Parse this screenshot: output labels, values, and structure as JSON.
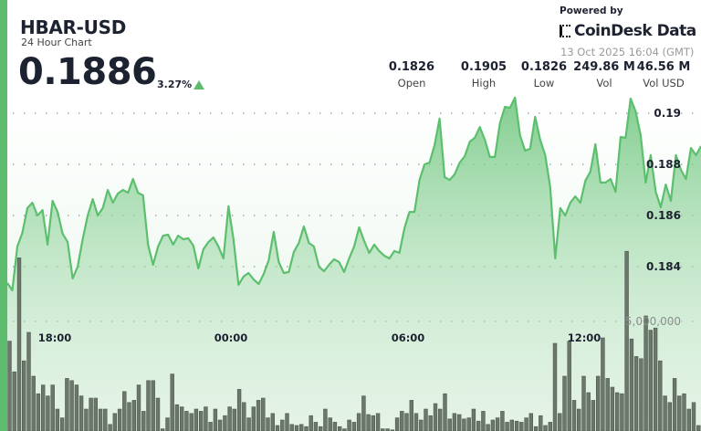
{
  "header": {
    "symbol": "HBAR-USD",
    "subtitle": "24 Hour Chart",
    "price": "0.1886",
    "change": "3.27%",
    "change_direction": "up",
    "powered_by": "Powered by",
    "brand": "CoinDesk Data",
    "timestamp": "13 Oct 2025 16:04 (GMT)"
  },
  "stats": [
    {
      "value": "0.1826",
      "label": "Open"
    },
    {
      "value": "0.1905",
      "label": "High"
    },
    {
      "value": "0.1826",
      "label": "Low"
    },
    {
      "value": "249.86 M",
      "label": "Vol"
    },
    {
      "value": "46.56 M",
      "label": "Vol USD"
    }
  ],
  "colors": {
    "accent": "#5dbb6e",
    "line": "#5cbf6e",
    "volume": "#6b776b"
  },
  "chart_data": {
    "type": "area",
    "title": "",
    "x_ticks": [
      "18:00",
      "00:00",
      "06:00",
      "12:00"
    ],
    "y_ticks": [
      "0.19",
      "0.188",
      "0.186",
      "0.184"
    ],
    "volume_tick": "5,000,000",
    "ylim": [
      0.1805,
      0.1944
    ],
    "grid": true,
    "price": [
      0.18336,
      0.18307,
      0.18479,
      0.18532,
      0.18629,
      0.1865,
      0.186,
      0.18621,
      0.18486,
      0.18657,
      0.18614,
      0.18529,
      0.18496,
      0.18354,
      0.184,
      0.18507,
      0.186,
      0.18664,
      0.186,
      0.18629,
      0.187,
      0.1865,
      0.18686,
      0.187,
      0.18689,
      0.18743,
      0.18689,
      0.18679,
      0.18486,
      0.18407,
      0.18479,
      0.18521,
      0.18525,
      0.18486,
      0.18521,
      0.18507,
      0.18511,
      0.18482,
      0.18393,
      0.18468,
      0.18496,
      0.18514,
      0.18479,
      0.18432,
      0.18636,
      0.18507,
      0.18329,
      0.18361,
      0.18375,
      0.1835,
      0.18332,
      0.18371,
      0.18425,
      0.18536,
      0.18418,
      0.18375,
      0.18379,
      0.18457,
      0.18493,
      0.18557,
      0.18493,
      0.18479,
      0.184,
      0.18382,
      0.18407,
      0.18429,
      0.18418,
      0.18379,
      0.18432,
      0.18479,
      0.18554,
      0.185,
      0.18454,
      0.18486,
      0.18461,
      0.18443,
      0.18432,
      0.18461,
      0.18454,
      0.1855,
      0.18614,
      0.18614,
      0.18739,
      0.188,
      0.18807,
      0.18875,
      0.18979,
      0.1875,
      0.18739,
      0.18761,
      0.18807,
      0.18832,
      0.18889,
      0.18904,
      0.18946,
      0.18896,
      0.18829,
      0.18829,
      0.18961,
      0.19025,
      0.19021,
      0.19061,
      0.18914,
      0.18854,
      0.18861,
      0.18986,
      0.18896,
      0.18836,
      0.18711,
      0.18432,
      0.18629,
      0.186,
      0.1865,
      0.18675,
      0.1865,
      0.18736,
      0.18771,
      0.18879,
      0.18729,
      0.18729,
      0.18743,
      0.18693,
      0.18907,
      0.18904,
      0.19057,
      0.19007,
      0.18914,
      0.18729,
      0.18836,
      0.18693,
      0.18632,
      0.18721,
      0.18657,
      0.18836,
      0.18779,
      0.18743,
      0.18864,
      0.18836,
      0.18871
    ],
    "volume": [
      4100000.0,
      2700000.0,
      7900000.0,
      3200000.0,
      4500000.0,
      2500000.0,
      1700000.0,
      2100000.0,
      1600000.0,
      2100000.0,
      1000000.0,
      600000.0,
      2400000.0,
      2300000.0,
      2100000.0,
      1600000.0,
      1000000.0,
      1500000.0,
      1500000.0,
      1000000.0,
      1000000.0,
      300000.0,
      800000.0,
      1000000.0,
      1800000.0,
      1300000.0,
      1400000.0,
      2100000.0,
      900000.0,
      2300000.0,
      2300000.0,
      1500000.0,
      100000.0,
      600000.0,
      2600000.0,
      1200000.0,
      1100000.0,
      900000.0,
      800000.0,
      1000000.0,
      900000.0,
      1100000.0,
      400000.0,
      1000000.0,
      500000.0,
      700000.0,
      1100000.0,
      1000000.0,
      1900000.0,
      1300000.0,
      600000.0,
      1100000.0,
      1400000.0,
      1500000.0,
      600000.0,
      800000.0,
      250000.0,
      500000.0,
      800000.0,
      300000.0,
      250000.0,
      300000.0,
      200000.0,
      700000.0,
      400000.0,
      200000.0,
      1000000.0,
      600000.0,
      400000.0,
      200000.0,
      100000.0,
      500000.0,
      400000.0,
      800000.0,
      1600000.0,
      750000.0,
      700000.0,
      800000.0,
      100000.0,
      100000.0,
      50000.0,
      600000.0,
      900000.0,
      800000.0,
      1400000.0,
      800000.0,
      500000.0,
      1000000.0,
      700000.0,
      1250000.0,
      1000000.0,
      1700000.0,
      550000.0,
      800000.0,
      750000.0,
      550000.0,
      600000.0,
      1000000.0,
      450000.0,
      900000.0,
      300000.0,
      500000.0,
      600000.0,
      900000.0,
      400000.0,
      500000.0,
      450000.0,
      400000.0,
      600000.0,
      800000.0,
      200000.0,
      700000.0,
      250000.0,
      400000.0,
      4000000.0,
      800000.0,
      2500000.0,
      4100000.0,
      1400000.0,
      1000000.0,
      2500000.0,
      1750000.0,
      1400000.0,
      2500000.0,
      4250000.0,
      2400000.0,
      2000000.0,
      1750000.0,
      1700000.0,
      8200000.0,
      4200000.0,
      3400000.0,
      3300000.0,
      5250000.0,
      4600000.0,
      4700000.0,
      3200000.0,
      1600000.0,
      1300000.0,
      2400000.0,
      1600000.0,
      1700000.0,
      1000000.0,
      1300000.0,
      250000.0
    ]
  }
}
